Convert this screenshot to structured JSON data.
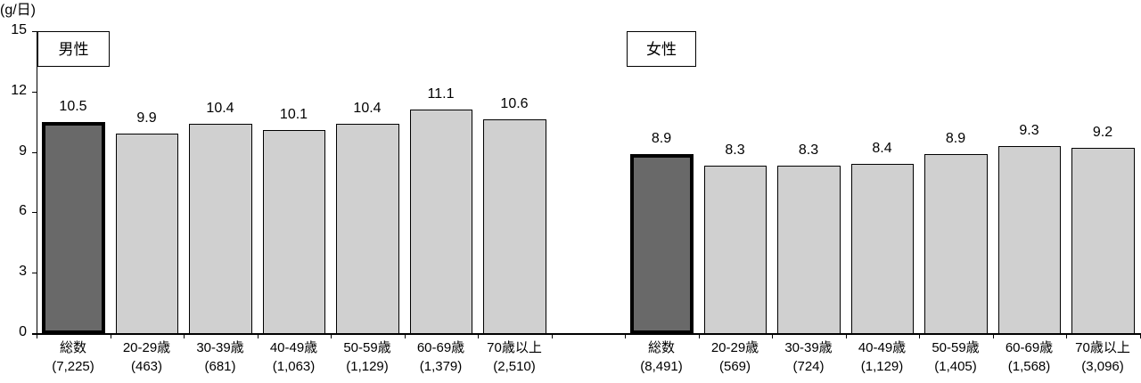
{
  "chart_data": {
    "type": "bar",
    "title": "",
    "ylabel": "(g/日)",
    "xlabel": "",
    "ylim": [
      0,
      15
    ],
    "yticks": [
      0,
      3,
      6,
      9,
      12,
      15
    ],
    "grid": false,
    "legend": null,
    "groups": [
      {
        "name": "男性",
        "categories": [
          "総数",
          "20-29歳",
          "30-39歳",
          "40-49歳",
          "50-59歳",
          "60-69歳",
          "70歳以上"
        ],
        "n": [
          "(7,225)",
          "(463)",
          "(681)",
          "(1,063)",
          "(1,129)",
          "(1,379)",
          "(2,510)"
        ],
        "values": [
          10.5,
          9.9,
          10.4,
          10.1,
          10.4,
          11.1,
          10.6
        ]
      },
      {
        "name": "女性",
        "categories": [
          "総数",
          "20-29歳",
          "30-39歳",
          "40-49歳",
          "50-59歳",
          "60-69歳",
          "70歳以上"
        ],
        "n": [
          "(8,491)",
          "(569)",
          "(724)",
          "(1,129)",
          "(1,405)",
          "(1,568)",
          "(3,096)"
        ],
        "values": [
          8.9,
          8.3,
          8.3,
          8.4,
          8.9,
          9.3,
          9.2
        ]
      }
    ]
  },
  "colors": {
    "total_bar": "#696969",
    "age_bar": "#d0d0d0",
    "outline": "#000000"
  }
}
